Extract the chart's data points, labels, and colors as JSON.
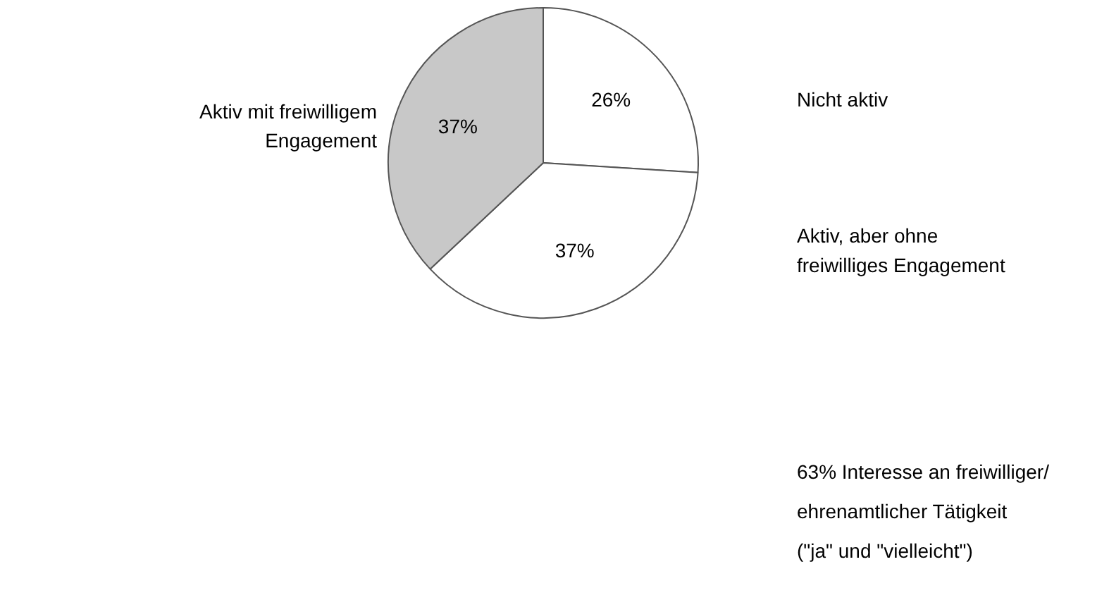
{
  "chart_data": {
    "type": "pie",
    "categories": [
      "Nicht aktiv",
      "Aktiv, aber ohne freiwilliges Engagement",
      "Aktiv mit freiwilligem Engagement"
    ],
    "values": [
      26,
      37,
      37
    ],
    "colors": [
      "#ffffff",
      "#ffffff",
      "#c8c8c8"
    ],
    "value_labels": [
      "26%",
      "37%",
      "37%"
    ],
    "annotations": [
      "63% Interesse an freiwilliger/ ehrenamtlicher Tätigkeit (\"ja\" und \"vielleicht\")"
    ]
  }
}
